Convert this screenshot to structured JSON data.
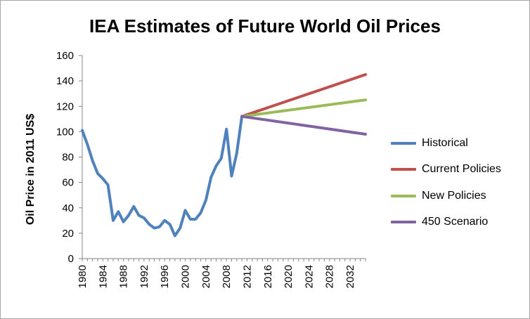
{
  "chart_data": {
    "type": "line",
    "title": "IEA Estimates of Future World Oil Prices",
    "xlabel": "",
    "ylabel": "Oil Price in 2011 US$",
    "xlim": [
      1980,
      2035
    ],
    "ylim": [
      0,
      160
    ],
    "y_ticks": [
      "0",
      "20",
      "40",
      "60",
      "80",
      "100",
      "120",
      "140",
      "160"
    ],
    "x_ticks": [
      "1980",
      "1984",
      "1988",
      "1992",
      "1996",
      "2000",
      "2004",
      "2008",
      "2012",
      "2016",
      "2020",
      "2024",
      "2028",
      "2032"
    ],
    "grid": false,
    "legend_position": "right",
    "series": [
      {
        "name": "Historical",
        "color": "#4f81bd",
        "x": [
          1980,
          1981,
          1982,
          1983,
          1984,
          1985,
          1986,
          1987,
          1988,
          1989,
          1990,
          1991,
          1992,
          1993,
          1994,
          1995,
          1996,
          1997,
          1998,
          1999,
          2000,
          2001,
          2002,
          2003,
          2004,
          2005,
          2006,
          2007,
          2008,
          2009,
          2010,
          2011
        ],
        "y": [
          101,
          90,
          77,
          67,
          63,
          58,
          30,
          37,
          29,
          34,
          41,
          34,
          32,
          27,
          24,
          25,
          30,
          27,
          18,
          24,
          38,
          31,
          31,
          36,
          46,
          64,
          73,
          79,
          102,
          65,
          83,
          112
        ]
      },
      {
        "name": "Current Policies",
        "color": "#c0504d",
        "x": [
          2011,
          2035
        ],
        "y": [
          112,
          145
        ]
      },
      {
        "name": "New Policies",
        "color": "#9bbb59",
        "x": [
          2011,
          2035
        ],
        "y": [
          112,
          125
        ]
      },
      {
        "name": "450 Scenario",
        "color": "#8064a2",
        "x": [
          2011,
          2035
        ],
        "y": [
          112,
          98
        ]
      }
    ]
  }
}
